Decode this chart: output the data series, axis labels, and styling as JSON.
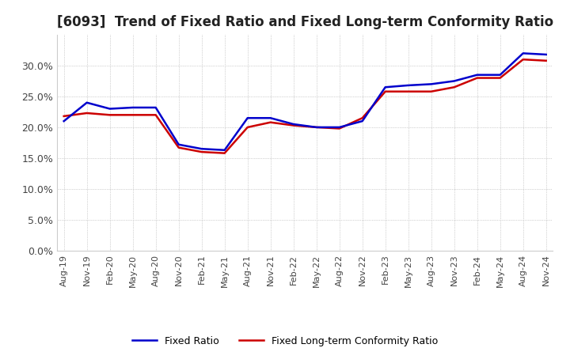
{
  "title": "[6093]  Trend of Fixed Ratio and Fixed Long-term Conformity Ratio",
  "title_fontsize": 12,
  "legend_labels": [
    "Fixed Ratio",
    "Fixed Long-term Conformity Ratio"
  ],
  "line_colors": [
    "#0000CC",
    "#CC0000"
  ],
  "x_labels": [
    "Aug-19",
    "Nov-19",
    "Feb-20",
    "May-20",
    "Aug-20",
    "Nov-20",
    "Feb-21",
    "May-21",
    "Aug-21",
    "Nov-21",
    "Feb-22",
    "May-22",
    "Aug-22",
    "Nov-22",
    "Feb-23",
    "May-23",
    "Aug-23",
    "Nov-23",
    "Feb-24",
    "May-24",
    "Aug-24",
    "Nov-24"
  ],
  "ylim": [
    0.0,
    0.35
  ],
  "yticks": [
    0.0,
    0.05,
    0.1,
    0.15,
    0.2,
    0.25,
    0.3
  ],
  "fixed_ratio": [
    0.21,
    0.24,
    0.23,
    0.232,
    0.232,
    0.172,
    0.165,
    0.163,
    0.215,
    0.215,
    0.205,
    0.2,
    0.2,
    0.21,
    0.265,
    0.268,
    0.27,
    0.275,
    0.285,
    0.285,
    0.32,
    0.318
  ],
  "fixed_lt_ratio": [
    0.218,
    0.223,
    0.22,
    0.22,
    0.22,
    0.167,
    0.16,
    0.158,
    0.2,
    0.208,
    0.203,
    0.2,
    0.198,
    0.215,
    0.258,
    0.258,
    0.258,
    0.265,
    0.28,
    0.28,
    0.31,
    0.308
  ],
  "bg_color": "#FFFFFF",
  "grid_color": "#AAAAAA",
  "line_width": 1.8,
  "font_color": "#444444"
}
